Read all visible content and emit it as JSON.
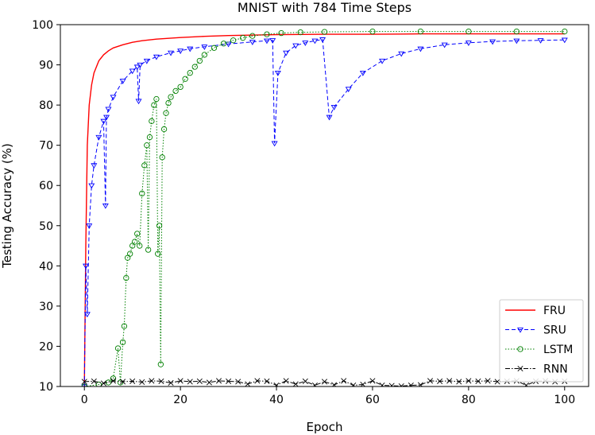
{
  "chart_data": {
    "type": "line",
    "title": "MNIST with 784 Time Steps",
    "xlabel": "Epoch",
    "ylabel": "Testing Accuracy (%)",
    "xlim": [
      -5,
      105
    ],
    "ylim": [
      10,
      100
    ],
    "xticks": [
      0,
      20,
      40,
      60,
      80,
      100
    ],
    "yticks": [
      10,
      20,
      30,
      40,
      50,
      60,
      70,
      80,
      90,
      100
    ],
    "grid": false,
    "legend_position": "bottom-right",
    "series": [
      {
        "name": "FRU",
        "color": "#ff0000",
        "dash": "solid",
        "marker": "none",
        "x": [
          0,
          0.3,
          0.6,
          1,
          1.5,
          2,
          3,
          4,
          5,
          6,
          8,
          10,
          12,
          15,
          20,
          25,
          30,
          40,
          50,
          60,
          70,
          80,
          90,
          100
        ],
        "y": [
          10,
          45,
          70,
          80,
          85,
          88,
          91,
          92.5,
          93.5,
          94.2,
          95,
          95.6,
          96,
          96.4,
          96.8,
          97.1,
          97.3,
          97.5,
          97.6,
          97.6,
          97.7,
          97.7,
          97.7,
          97.7
        ]
      },
      {
        "name": "SRU",
        "color": "#0000ff",
        "dash": "dashed",
        "marker": "triangle-down",
        "x": [
          0,
          0.3,
          0.6,
          1,
          1.5,
          2,
          3,
          4,
          4.4,
          4.6,
          5,
          6,
          8,
          10,
          11,
          11.3,
          11.6,
          13,
          15,
          18,
          20,
          22,
          25,
          30,
          35,
          38,
          39.2,
          39.6,
          40.3,
          42,
          44,
          46,
          48,
          49.6,
          51,
          52,
          55,
          58,
          62,
          66,
          70,
          75,
          80,
          85,
          90,
          95,
          100
        ],
        "y": [
          10,
          40,
          28,
          50,
          60,
          65,
          72,
          76,
          55,
          77,
          79,
          82,
          86,
          88.5,
          89.5,
          81,
          90,
          91,
          92,
          93,
          93.5,
          94,
          94.5,
          95.2,
          95.7,
          96,
          96.1,
          70.5,
          88,
          93,
          94.8,
          95.5,
          96,
          96.3,
          77,
          79.5,
          84,
          88,
          91,
          92.8,
          94,
          95,
          95.5,
          95.8,
          96,
          96.1,
          96.2
        ]
      },
      {
        "name": "LSTM",
        "color": "#008000",
        "dash": "dotted",
        "marker": "circle",
        "x": [
          0,
          3,
          5,
          6,
          7,
          7.5,
          8,
          8.3,
          8.7,
          9,
          9.5,
          10,
          10.5,
          11,
          11.5,
          12,
          12.5,
          13,
          13.3,
          13.6,
          14,
          14.5,
          15,
          15.3,
          15.6,
          15.9,
          16.2,
          16.6,
          17,
          17.5,
          18,
          19,
          20,
          21,
          22,
          23,
          24,
          25,
          27,
          29,
          31,
          33,
          35,
          38,
          41,
          45,
          50,
          60,
          70,
          80,
          90,
          100
        ],
        "y": [
          10,
          10.5,
          11,
          12,
          19.5,
          11,
          21,
          25,
          37,
          42,
          43,
          45,
          46,
          48,
          45,
          58,
          65,
          70,
          44,
          72,
          76,
          80,
          81.5,
          43,
          50,
          15.5,
          67,
          74,
          78,
          80.5,
          82,
          83.5,
          84.5,
          86.5,
          88,
          89.5,
          91,
          92.5,
          94.2,
          95.3,
          96.1,
          96.7,
          97.2,
          97.6,
          97.9,
          98.1,
          98.2,
          98.3,
          98.3,
          98.3,
          98.3,
          98.3
        ]
      },
      {
        "name": "RNN",
        "color": "#000000",
        "dash": "dashdot",
        "marker": "x",
        "x": [
          0,
          2,
          4,
          6,
          8,
          10,
          12,
          14,
          16,
          18,
          20,
          22,
          24,
          26,
          28,
          30,
          32,
          34,
          36,
          38,
          40,
          42,
          44,
          46,
          48,
          50,
          52,
          54,
          56,
          58,
          60,
          62,
          64,
          66,
          68,
          70,
          72,
          74,
          76,
          78,
          80,
          82,
          84,
          86,
          88,
          90,
          92,
          94,
          96,
          98,
          100
        ],
        "y": [
          11.2,
          11.3,
          10.8,
          11.4,
          11.2,
          11.3,
          11.1,
          11.4,
          11.3,
          10.9,
          11.4,
          11.2,
          11.3,
          11,
          11.4,
          11.3,
          11.2,
          10.6,
          11.4,
          11.3,
          10.3,
          11.4,
          10.6,
          11.3,
          10.3,
          11.2,
          10.4,
          11.4,
          10.3,
          10.5,
          11.4,
          10.3,
          10.2,
          10.1,
          10.3,
          10.4,
          11.4,
          11.3,
          11.4,
          11.2,
          11.4,
          11.3,
          11.4,
          11.2,
          11.3,
          11.4,
          10.3,
          11.3,
          11.4,
          11.2,
          11.3
        ]
      }
    ]
  }
}
